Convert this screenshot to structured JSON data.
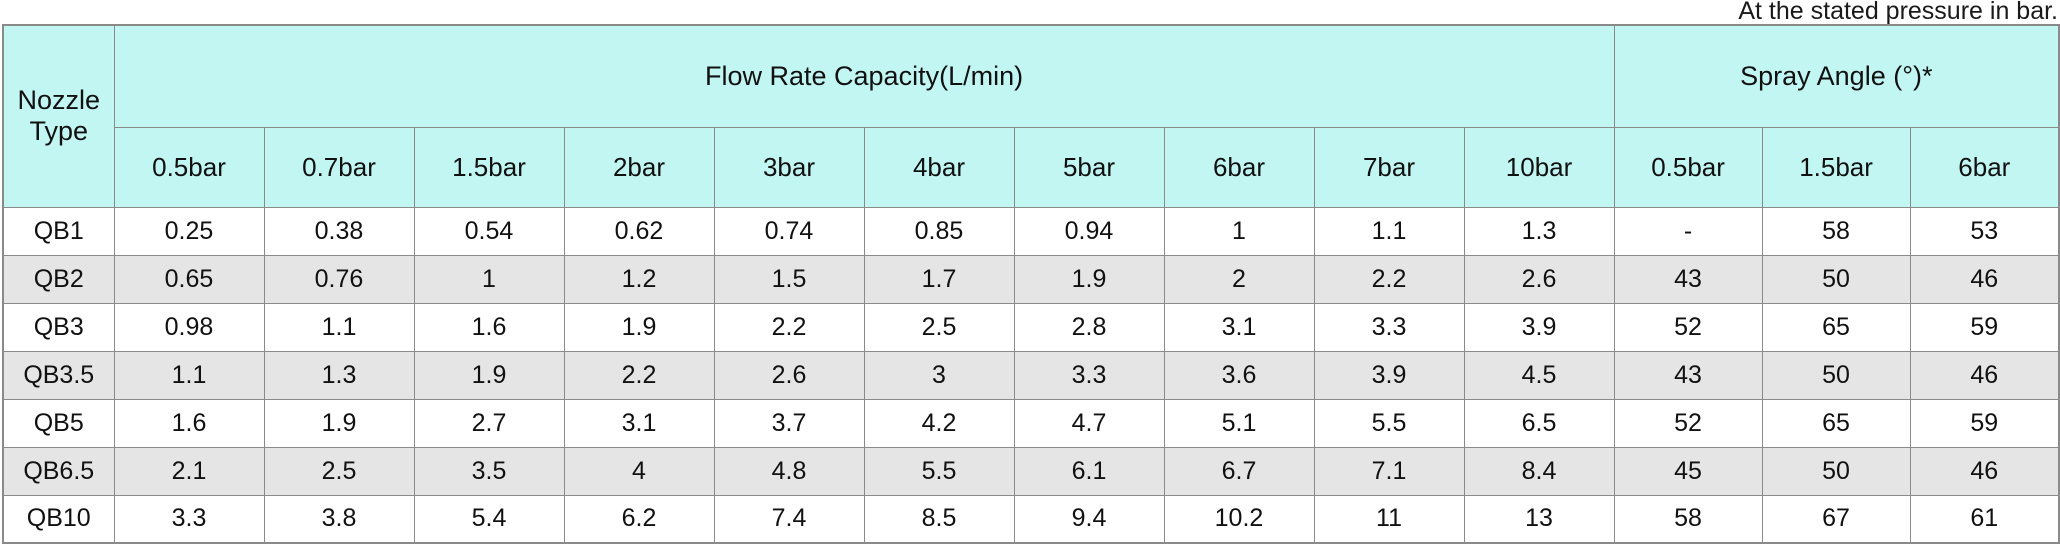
{
  "caption": "At the stated pressure in bar.",
  "colors": {
    "header_bg": "#c2f6f3",
    "row_alt_bg": "#e5e5e5",
    "border": "#8a8a8a",
    "text": "#111111"
  },
  "table": {
    "corner_header": "Nozzle Type",
    "groups": [
      {
        "label": "Flow Rate Capacity(L/min)",
        "columns": [
          "0.5bar",
          "0.7bar",
          "1.5bar",
          "2bar",
          "3bar",
          "4bar",
          "5bar",
          "6bar",
          "7bar",
          "10bar"
        ]
      },
      {
        "label": "Spray Angle (°)*",
        "columns": [
          "0.5bar",
          "1.5bar",
          "6bar"
        ]
      }
    ],
    "rows": [
      {
        "type": "QB1",
        "flow": [
          "0.25",
          "0.38",
          "0.54",
          "0.62",
          "0.74",
          "0.85",
          "0.94",
          "1",
          "1.1",
          "1.3"
        ],
        "angle": [
          "-",
          "58",
          "53"
        ]
      },
      {
        "type": "QB2",
        "flow": [
          "0.65",
          "0.76",
          "1",
          "1.2",
          "1.5",
          "1.7",
          "1.9",
          "2",
          "2.2",
          "2.6"
        ],
        "angle": [
          "43",
          "50",
          "46"
        ]
      },
      {
        "type": "QB3",
        "flow": [
          "0.98",
          "1.1",
          "1.6",
          "1.9",
          "2.2",
          "2.5",
          "2.8",
          "3.1",
          "3.3",
          "3.9"
        ],
        "angle": [
          "52",
          "65",
          "59"
        ]
      },
      {
        "type": "QB3.5",
        "flow": [
          "1.1",
          "1.3",
          "1.9",
          "2.2",
          "2.6",
          "3",
          "3.3",
          "3.6",
          "3.9",
          "4.5"
        ],
        "angle": [
          "43",
          "50",
          "46"
        ]
      },
      {
        "type": "QB5",
        "flow": [
          "1.6",
          "1.9",
          "2.7",
          "3.1",
          "3.7",
          "4.2",
          "4.7",
          "5.1",
          "5.5",
          "6.5"
        ],
        "angle": [
          "52",
          "65",
          "59"
        ]
      },
      {
        "type": "QB6.5",
        "flow": [
          "2.1",
          "2.5",
          "3.5",
          "4",
          "4.8",
          "5.5",
          "6.1",
          "6.7",
          "7.1",
          "8.4"
        ],
        "angle": [
          "45",
          "50",
          "46"
        ]
      },
      {
        "type": "QB10",
        "flow": [
          "3.3",
          "3.8",
          "5.4",
          "6.2",
          "7.4",
          "8.5",
          "9.4",
          "10.2",
          "11",
          "13"
        ],
        "angle": [
          "58",
          "67",
          "61"
        ]
      }
    ]
  }
}
